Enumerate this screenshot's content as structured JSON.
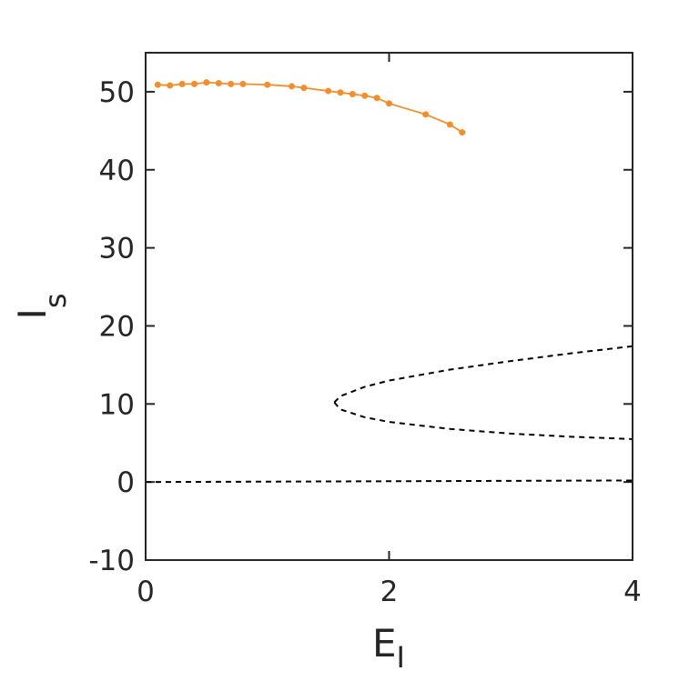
{
  "chart_data": {
    "type": "line",
    "xlabel": "E",
    "xlabel_sub": "I",
    "ylabel": "I",
    "ylabel_sub": "s",
    "xlim": [
      0,
      4
    ],
    "xticks": [
      0,
      2,
      4
    ],
    "ylim": [
      -10,
      55
    ],
    "yticks": [
      -10,
      0,
      10,
      20,
      30,
      40,
      50
    ],
    "series": [
      {
        "color": "#f28e2b",
        "style": "solid",
        "markers": true,
        "x": [
          0.1,
          0.2,
          0.3,
          0.4,
          0.5,
          0.6,
          0.7,
          0.8,
          1.0,
          1.2,
          1.3,
          1.5,
          1.6,
          1.7,
          1.8,
          1.9,
          2.0,
          2.3,
          2.5,
          2.6
        ],
        "values": [
          50.9,
          50.8,
          51.0,
          51.0,
          51.2,
          51.1,
          51.0,
          51.0,
          50.9,
          50.7,
          50.5,
          50.1,
          49.9,
          49.7,
          49.5,
          49.2,
          48.5,
          47.1,
          45.8,
          44.8
        ]
      },
      {
        "color": "#000000",
        "style": "dashed",
        "markers": false,
        "x": [
          1.55,
          1.6,
          1.8,
          2.0,
          2.5,
          3.0,
          3.5,
          4.0
        ],
        "values": [
          10.2,
          11.0,
          12.2,
          13.0,
          14.4,
          15.5,
          16.5,
          17.4
        ]
      },
      {
        "color": "#000000",
        "style": "dashed",
        "markers": false,
        "x": [
          1.55,
          1.6,
          1.8,
          2.0,
          2.5,
          3.0,
          3.5,
          4.0
        ],
        "values": [
          10.2,
          9.3,
          8.3,
          7.7,
          6.8,
          6.2,
          5.8,
          5.5
        ]
      },
      {
        "color": "#000000",
        "style": "dashed",
        "markers": false,
        "x": [
          0,
          4
        ],
        "values": [
          0,
          0.2
        ]
      }
    ]
  }
}
